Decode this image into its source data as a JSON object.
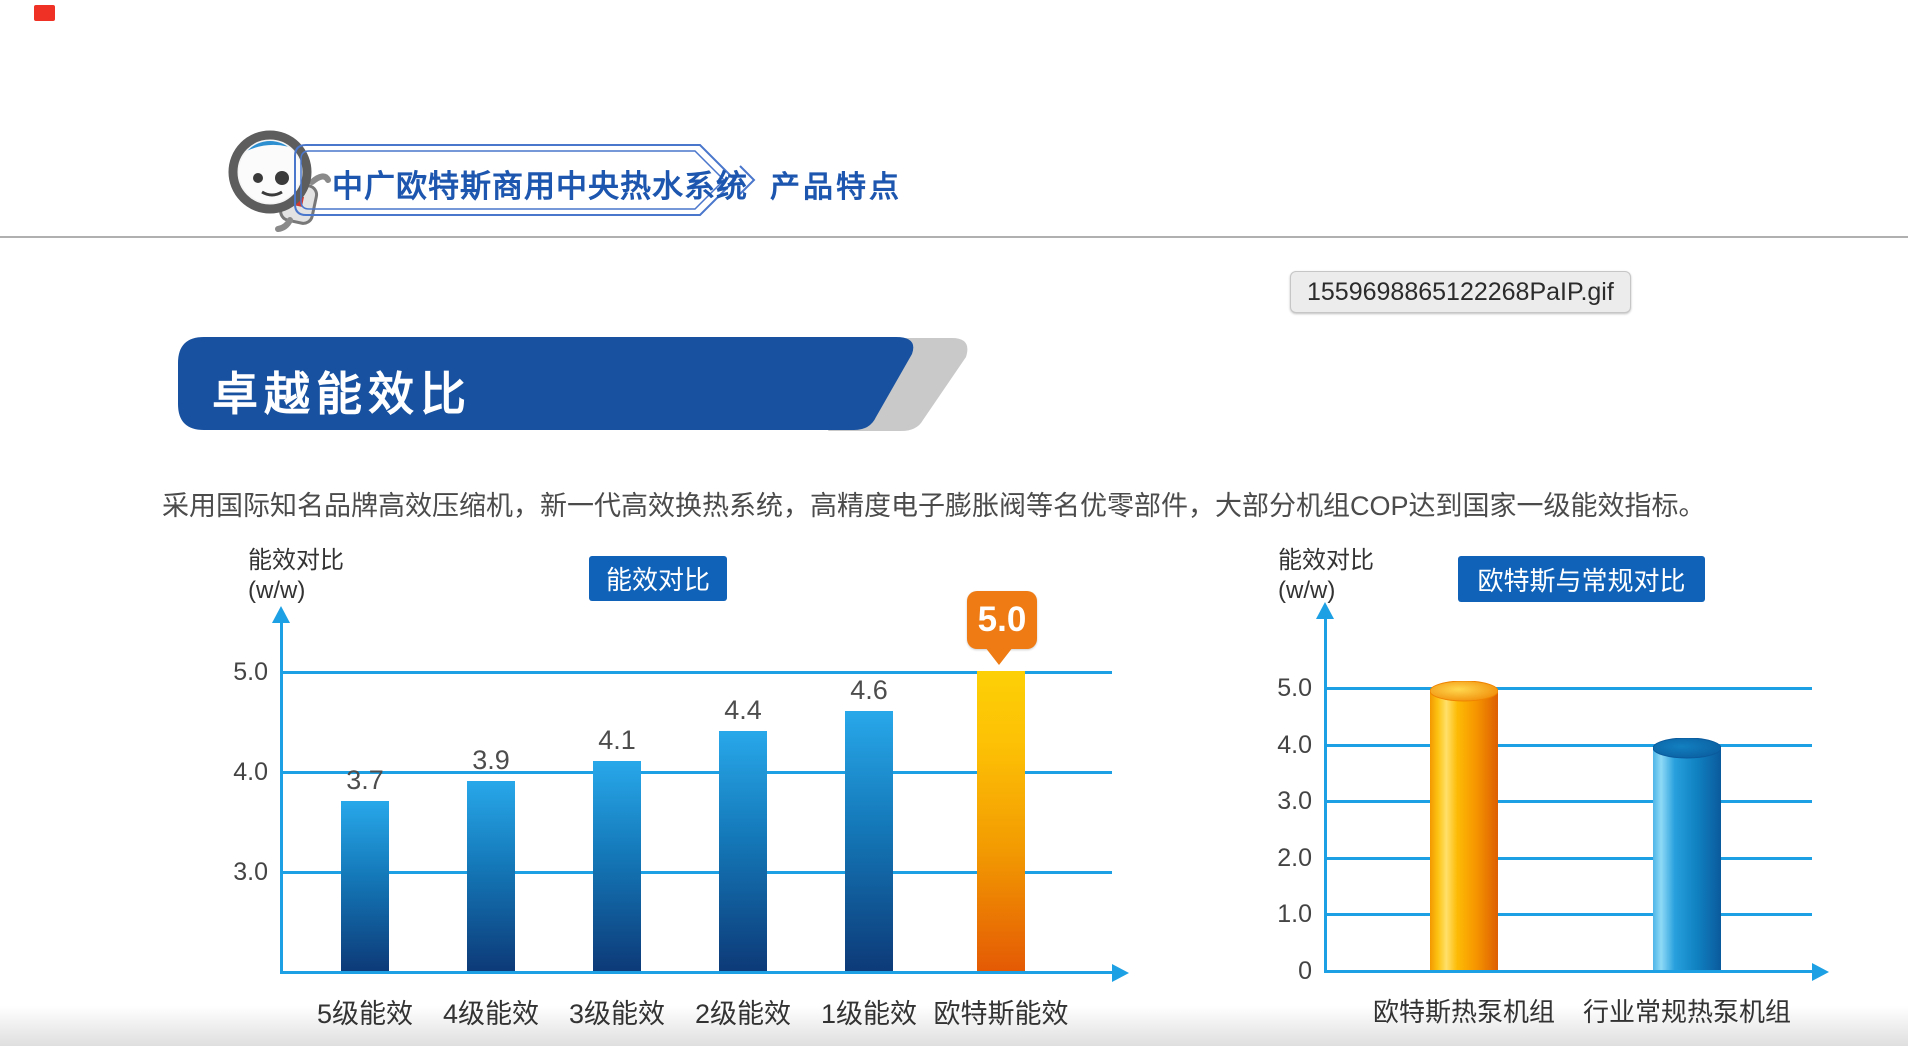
{
  "header": {
    "brand_title": "中广欧特斯商用中央热水系统",
    "page_title": "产品特点"
  },
  "file_tag": {
    "label": "1559698865122268PaIP.gif"
  },
  "banner": {
    "title": "卓越能效比"
  },
  "intro": {
    "text": "采用国际知名品牌高效压缩机，新一代高效换热系统，高精度电子膨胀阀等名优零部件，大部分机组COP达到国家一级能效指标。"
  },
  "chart_data": [
    {
      "type": "bar",
      "title": "能效对比",
      "axis_unit_line1": "能效对比",
      "axis_unit_line2": "(w/w)",
      "categories": [
        "5级能效",
        "4级能效",
        "3级能效",
        "2级能效",
        "1级能效",
        "欧特斯能效"
      ],
      "values": [
        3.7,
        3.9,
        4.1,
        4.4,
        4.6,
        5.0
      ],
      "highlight_index": 5,
      "highlight_callout": "5.0",
      "ytick_labels": [
        "5.0",
        "4.0",
        "3.0"
      ],
      "ytick_values": [
        5.0,
        4.0,
        3.0
      ],
      "ylim": [
        2.0,
        5.6
      ],
      "grid": true,
      "legend_position": "none",
      "bar_style": "flat-gradient-blue",
      "highlight_style": "flat-gradient-orange"
    },
    {
      "type": "bar",
      "subtype": "cylinder-3d",
      "title": "欧特斯与常规对比",
      "axis_unit_line1": "能效对比",
      "axis_unit_line2": "(w/w)",
      "categories": [
        "欧特斯热泵机组",
        "行业常规热泵机组"
      ],
      "values": [
        5.0,
        4.0
      ],
      "ytick_labels": [
        "5.0",
        "4.0",
        "3.0",
        "2.0",
        "1.0",
        "0"
      ],
      "ytick_values": [
        5.0,
        4.0,
        3.0,
        2.0,
        1.0,
        0
      ],
      "ylim": [
        0,
        6.3
      ],
      "grid": true,
      "legend_position": "none",
      "series_colors": [
        "orange-cylinder",
        "blue-cylinder"
      ]
    }
  ],
  "colors": {
    "accent_blue": "#0f62b8",
    "banner_blue": "#17519f",
    "banner_gray": "#c9c9c9",
    "axis_blue": "#1da1e4",
    "header_text_blue": "#1c56ae",
    "callout_orange": "#ee7b13",
    "bar_blue_top": "#28a8ea",
    "bar_blue_bottom": "#0d3a78",
    "bar_orange_top": "#fdd006",
    "bar_orange_bottom": "#e45a04",
    "red_marker": "#ee3124"
  }
}
